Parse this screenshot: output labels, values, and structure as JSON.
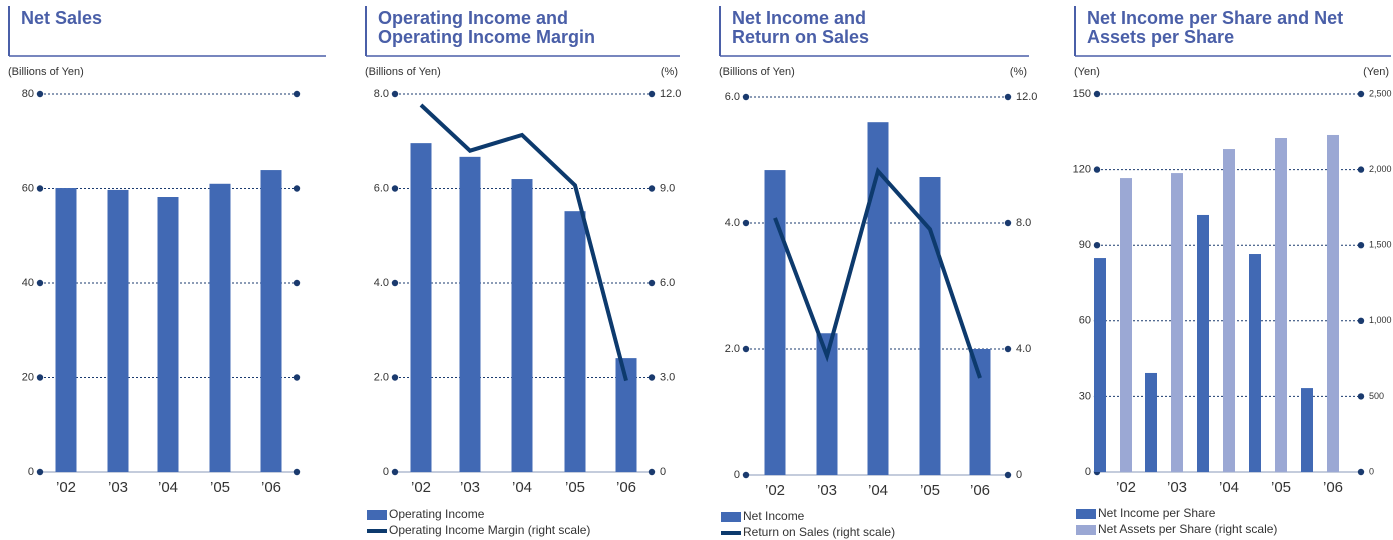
{
  "chart_data": [
    {
      "type": "bar",
      "title": "Net Sales",
      "y_label": "(Billions of Yen)",
      "categories": [
        "’02",
        "’03",
        "’04",
        "’05",
        "’06"
      ],
      "values": [
        60.1,
        59.7,
        58.2,
        61,
        63.9
      ],
      "color": "#4169b4",
      "ylim": [
        0,
        80
      ],
      "yticks": [
        0,
        20,
        40,
        60,
        80
      ],
      "grid": true
    },
    {
      "type": "combo",
      "title": "Operating Income and Operating Income Margin",
      "y_label": "(Billions of Yen)",
      "y2_label": "(%)",
      "categories": [
        "’02",
        "’03",
        "’04",
        "’05",
        "’06"
      ],
      "series": [
        {
          "name": "Operating Income",
          "type": "bar",
          "color": "#4169b4",
          "values": [
            6.96,
            6.67,
            6.2,
            5.52,
            2.41
          ]
        },
        {
          "name": "Operating Income Margin (right scale)",
          "type": "line",
          "axis": "y2",
          "color": "#0d3a6d",
          "values": [
            11.65,
            10.2,
            10.7,
            9.1,
            2.9
          ]
        }
      ],
      "ylim": [
        0,
        8
      ],
      "yticks": [
        0,
        {
          "value": 2,
          "label": "2.0"
        },
        {
          "value": 4,
          "label": "4.0"
        },
        {
          "value": 6,
          "label": "6.0"
        },
        {
          "value": 8,
          "label": "8.0"
        }
      ],
      "y2lim": [
        0,
        12
      ],
      "y2ticks": [
        0,
        {
          "value": 3,
          "label": "3.0"
        },
        {
          "value": 6,
          "label": "6.0"
        },
        {
          "value": 9,
          "label": "9.0"
        },
        {
          "value": 12,
          "label": "12.0"
        }
      ],
      "grid": true
    },
    {
      "type": "combo",
      "title": "Net Income and Return on Sales",
      "y_label": "(Billions of Yen)",
      "y2_label": "(%)",
      "categories": [
        "’02",
        "’03",
        "’04",
        "’05",
        "’06"
      ],
      "series": [
        {
          "name": "Net Income",
          "type": "bar",
          "color": "#4169b4",
          "values": [
            4.84,
            2.25,
            5.6,
            4.73,
            2.0
          ]
        },
        {
          "name": "Return on Sales (right scale)",
          "type": "line",
          "axis": "y2",
          "color": "#0d3a6d",
          "values": [
            8.16,
            3.78,
            9.65,
            7.8,
            3.08
          ]
        }
      ],
      "ylim": [
        0,
        6
      ],
      "yticks": [
        0,
        {
          "value": 2,
          "label": "2.0"
        },
        {
          "value": 4,
          "label": "4.0"
        },
        {
          "value": 6,
          "label": "6.0"
        }
      ],
      "y2lim": [
        0,
        12
      ],
      "y2ticks": [
        0,
        {
          "value": 4,
          "label": "4.0"
        },
        {
          "value": 8,
          "label": "8.0"
        },
        {
          "value": 12,
          "label": "12.0"
        }
      ],
      "grid": true
    },
    {
      "type": "bar",
      "title": "Net Income per Share and Net Assets per Share",
      "y_label": "(Yen)",
      "y2_label": "(Yen)",
      "categories": [
        "’02",
        "’03",
        "’04",
        "’05",
        "’06"
      ],
      "series": [
        {
          "name": "Net Income per Share",
          "color": "#4169b4",
          "values": [
            84.9,
            39.3,
            102,
            86.5,
            33.3
          ]
        },
        {
          "name": "Net Assets per Share (right scale)",
          "axis": "y2",
          "color": "#9ba8d4",
          "values": [
            1944,
            1977,
            2136,
            2209,
            2229
          ]
        }
      ],
      "ylim": [
        0,
        150
      ],
      "yticks": [
        0,
        30,
        60,
        90,
        120,
        150
      ],
      "y2lim": [
        0,
        2500
      ],
      "y2ticks": [
        0,
        500,
        {
          "value": 1000,
          "label": "1,000"
        },
        {
          "value": 1500,
          "label": "1,500"
        },
        {
          "value": 2000,
          "label": "2,000"
        },
        {
          "value": 2500,
          "label": "2,500"
        }
      ],
      "grid": true
    }
  ]
}
